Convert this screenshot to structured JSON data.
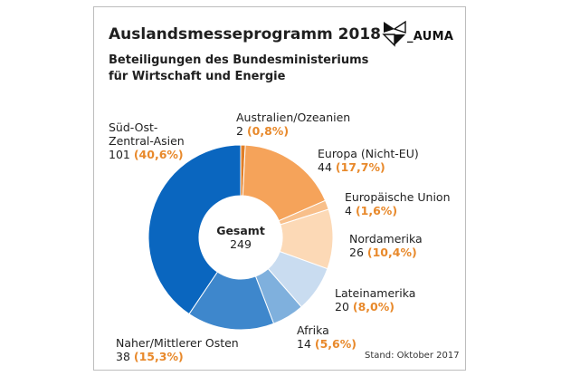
{
  "header": {
    "title": "Auslandsmesseprogramm 2018",
    "subtitle_line1": "Beteiligungen des Bundesministeriums",
    "subtitle_line2": "für Wirtschaft und Energie",
    "logo_text": "_AUMA"
  },
  "footer": {
    "stand": "Stand: Oktober 2017"
  },
  "chart_data": {
    "type": "pie",
    "total_label": "Gesamt",
    "total_value": "249",
    "slices": [
      {
        "name": "Australien/Ozeanien",
        "value": 2,
        "value_label": "2",
        "pct_label": "(0,8%)",
        "color": "#e07f28"
      },
      {
        "name": "Europa (Nicht-EU)",
        "value": 44,
        "value_label": "44",
        "pct_label": "(17,7%)",
        "color": "#f5a35a"
      },
      {
        "name": "Europäische Union",
        "value": 4,
        "value_label": "4",
        "pct_label": "(1,6%)",
        "color": "#f8bf8a"
      },
      {
        "name": "Nordamerika",
        "value": 26,
        "value_label": "26",
        "pct_label": "(10,4%)",
        "color": "#fcd9b6"
      },
      {
        "name": "Lateinamerika",
        "value": 20,
        "value_label": "20",
        "pct_label": "(8,0%)",
        "color": "#c9dcf0"
      },
      {
        "name": "Afrika",
        "value": 14,
        "value_label": "14",
        "pct_label": "(5,6%)",
        "color": "#7fb0dd"
      },
      {
        "name": "Naher/Mittlerer Osten",
        "value": 38,
        "value_label": "38",
        "pct_label": "(15,3%)",
        "color": "#3e87cc"
      },
      {
        "name": "Süd-Ost-Zentral-Asien",
        "value": 101,
        "value_label": "101",
        "pct_label": "(40,6%)",
        "color": "#0a66bf"
      }
    ],
    "label_lines": {
      "sued_ost_1": "Süd-Ost-",
      "sued_ost_2": "Zentral-Asien"
    }
  }
}
